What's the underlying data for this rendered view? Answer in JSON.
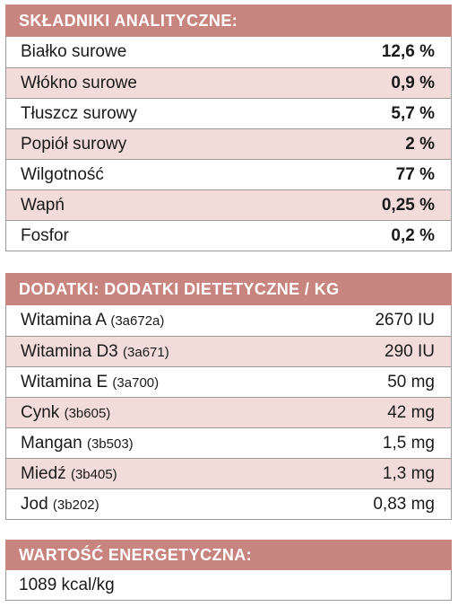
{
  "analytical": {
    "title": "SKŁADNIKI ANALITYCZNE:",
    "rows": [
      {
        "label": "Białko surowe",
        "value": "12,6 %"
      },
      {
        "label": "Włókno surowe",
        "value": "0,9 %"
      },
      {
        "label": "Tłuszcz surowy",
        "value": "5,7 %"
      },
      {
        "label": "Popiół surowy",
        "value": "2 %"
      },
      {
        "label": "Wilgotność",
        "value": "77 %"
      },
      {
        "label": "Wapń",
        "value": "0,25 %"
      },
      {
        "label": "Fosfor",
        "value": "0,2 %"
      }
    ]
  },
  "additives": {
    "title": "DODATKI: DODATKI DIETETYCZNE / KG",
    "rows": [
      {
        "label": "Witamina A",
        "code": "(3a672a)",
        "value": "2670 IU"
      },
      {
        "label": "Witamina D3",
        "code": "(3a671)",
        "value": "290 IU"
      },
      {
        "label": "Witamina E",
        "code": "(3a700)",
        "value": "50 mg"
      },
      {
        "label": "Cynk",
        "code": "(3b605)",
        "value": "42 mg"
      },
      {
        "label": "Mangan",
        "code": "(3b503)",
        "value": "1,5 mg"
      },
      {
        "label": "Miedź",
        "code": "(3b405)",
        "value": "1,3 mg"
      },
      {
        "label": "Jod",
        "code": "(3b202)",
        "value": "0,83 mg"
      }
    ]
  },
  "energy": {
    "title": "WARTOŚĆ ENERGETYCZNA:",
    "value": "1089 kcal/kg"
  },
  "colors": {
    "header": "#c8857f",
    "stripe": "#f2dcda",
    "border": "#9a9a9a"
  }
}
